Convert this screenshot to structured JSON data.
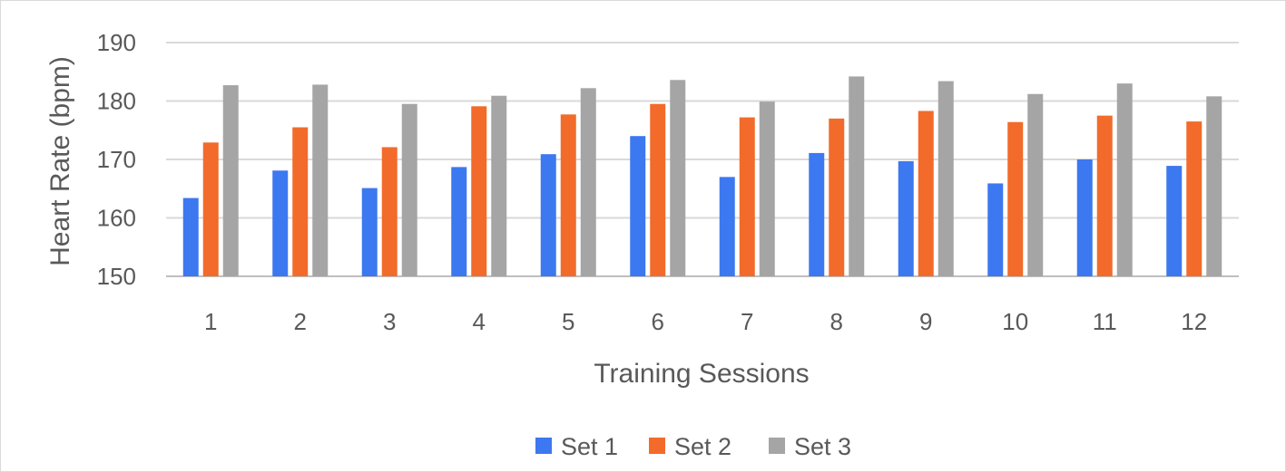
{
  "chart_data": {
    "type": "bar",
    "xlabel": "Training Sessions",
    "ylabel": "Heart Rate (bpm)",
    "ylim": [
      150,
      190
    ],
    "yticks": [
      150,
      160,
      170,
      180,
      190
    ],
    "grid": true,
    "legend_position": "bottom",
    "categories": [
      "1",
      "2",
      "3",
      "4",
      "5",
      "6",
      "7",
      "8",
      "9",
      "10",
      "11",
      "12"
    ],
    "series": [
      {
        "name": "Set 1",
        "color": "#3c78f0",
        "values": [
          163.4,
          168.1,
          165.1,
          168.7,
          170.9,
          174.0,
          167.0,
          171.1,
          169.7,
          165.9,
          170.0,
          168.9
        ]
      },
      {
        "name": "Set 2",
        "color": "#f26b2a",
        "values": [
          172.9,
          175.5,
          172.1,
          179.1,
          177.7,
          179.5,
          177.2,
          177.0,
          178.3,
          176.4,
          177.5,
          176.5
        ]
      },
      {
        "name": "Set 3",
        "color": "#a5a5a5",
        "values": [
          182.7,
          182.8,
          179.5,
          180.9,
          182.2,
          183.6,
          179.9,
          184.2,
          183.4,
          181.2,
          183.0,
          180.8
        ]
      }
    ]
  }
}
